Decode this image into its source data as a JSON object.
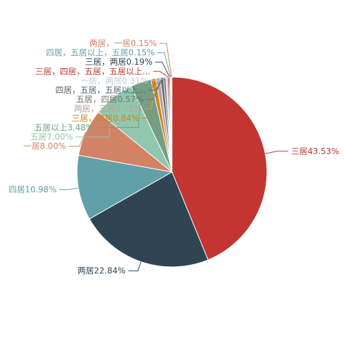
{
  "chart_data": {
    "type": "pie",
    "title": "",
    "slices": [
      {
        "name": "三居",
        "value": 43.53,
        "label": "三居43.53%",
        "color": "#c23531"
      },
      {
        "name": "两居",
        "value": 22.84,
        "label": "两居22.84%",
        "color": "#2f4554"
      },
      {
        "name": "四居",
        "value": 10.98,
        "label": "四居10.98%",
        "color": "#61a0a8"
      },
      {
        "name": "一居",
        "value": 8.0,
        "label": "一居8.00%",
        "color": "#d48265"
      },
      {
        "name": "五居",
        "value": 7.0,
        "label": "五居7.00%",
        "color": "#91c7ae"
      },
      {
        "name": "五居以上",
        "value": 3.48,
        "label": "五居以上3.48%",
        "color": "#749f83"
      },
      {
        "name": "三居，四居",
        "value": 0.84,
        "label": "三居，四居0.84%",
        "color": "#ca8622"
      },
      {
        "name": "两居，三居",
        "value": 0.73,
        "label": "两居，三居0.73%",
        "color": "#bda29a"
      },
      {
        "name": "五居，四居",
        "value": 0.57,
        "label": "五居，四居0.57%",
        "color": "#6e7074"
      },
      {
        "name": "四居，五居，五居以上",
        "value": 0.34,
        "label": "四居，五居，五居以上...",
        "color": "#546570"
      },
      {
        "name": "一居，两居",
        "value": 0.31,
        "label": "一居，两居0.31%",
        "color": "#c4ccd3"
      },
      {
        "name": "三居，四居，五居，五居以上",
        "value": 0.28,
        "label": "三居，四居，五居，五居以上...",
        "color": "#c23531"
      },
      {
        "name": "三居，两居",
        "value": 0.19,
        "label": "三居，两居0.19%",
        "color": "#2f4554"
      },
      {
        "name": "四居，五居以上，五居",
        "value": 0.15,
        "label": "四居，五居以上，五居0.15%",
        "color": "#61a0a8"
      },
      {
        "name": "两居，一居",
        "value": 0.15,
        "label": "两居，一居0.15%",
        "color": "#d48265"
      }
    ]
  }
}
